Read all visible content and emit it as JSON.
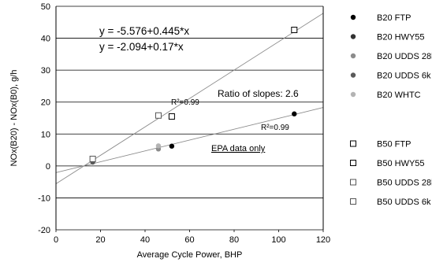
{
  "chart_data": {
    "type": "scatter",
    "xlabel": "Average Cycle Power, BHP",
    "ylabel": "NOx(B20) - NOx(B0), g/h",
    "xlim": [
      0,
      120
    ],
    "ylim": [
      -20,
      50
    ],
    "x_ticks": [
      "0",
      "20",
      "40",
      "60",
      "80",
      "100",
      "120"
    ],
    "y_ticks": [
      "-20",
      "-10",
      "0",
      "10",
      "20",
      "30",
      "40",
      "50"
    ],
    "grid": "horizontal",
    "legend_position": "right",
    "series": [
      {
        "name": "B20 FTP",
        "marker": "filled-circle",
        "color": "#000000",
        "points": [
          [
            52,
            6.2
          ],
          [
            107,
            16.3
          ]
        ]
      },
      {
        "name": "B20 HWY55",
        "marker": "filled-circle",
        "color": "#333333",
        "points": []
      },
      {
        "name": "B20 UDDS 28k",
        "marker": "filled-circle",
        "color": "#8c8c8c",
        "points": [
          [
            46,
            5.3
          ]
        ]
      },
      {
        "name": "B20 UDDS 6k",
        "marker": "filled-circle",
        "color": "#5a5a5a",
        "points": [
          [
            16.5,
            1.2
          ]
        ]
      },
      {
        "name": "B20 WHTC",
        "marker": "filled-circle",
        "color": "#b4b4b4",
        "points": [
          [
            46,
            6.3
          ]
        ]
      },
      {
        "name": "B50 FTP",
        "marker": "open-square",
        "color": "#000000",
        "points": [
          [
            52,
            15.5
          ],
          [
            107,
            42.6
          ]
        ]
      },
      {
        "name": "B50 HWY55",
        "marker": "open-square",
        "color": "#000000",
        "points": []
      },
      {
        "name": "B50 UDDS 28k",
        "marker": "open-square",
        "color": "#555555",
        "points": [
          [
            46,
            15.8
          ]
        ]
      },
      {
        "name": "B50 UDDS 6k",
        "marker": "open-square",
        "color": "#555555",
        "points": [
          [
            16.5,
            2.2
          ]
        ]
      }
    ],
    "fit_lines": [
      {
        "intercept": -5.576,
        "slope": 0.445,
        "color": "#8a8a8a"
      },
      {
        "intercept": -2.094,
        "slope": 0.17,
        "color": "#8a8a8a"
      }
    ],
    "annotations": {
      "eq_b50": "y = -5.576+0.445*x",
      "eq_b20": "y = -2.094+0.17*x",
      "r2_b50": "R²=0.99",
      "r2_b20": "R²=0.99",
      "ratio": "Ratio of slopes: 2.6",
      "epa": "EPA data only"
    }
  }
}
